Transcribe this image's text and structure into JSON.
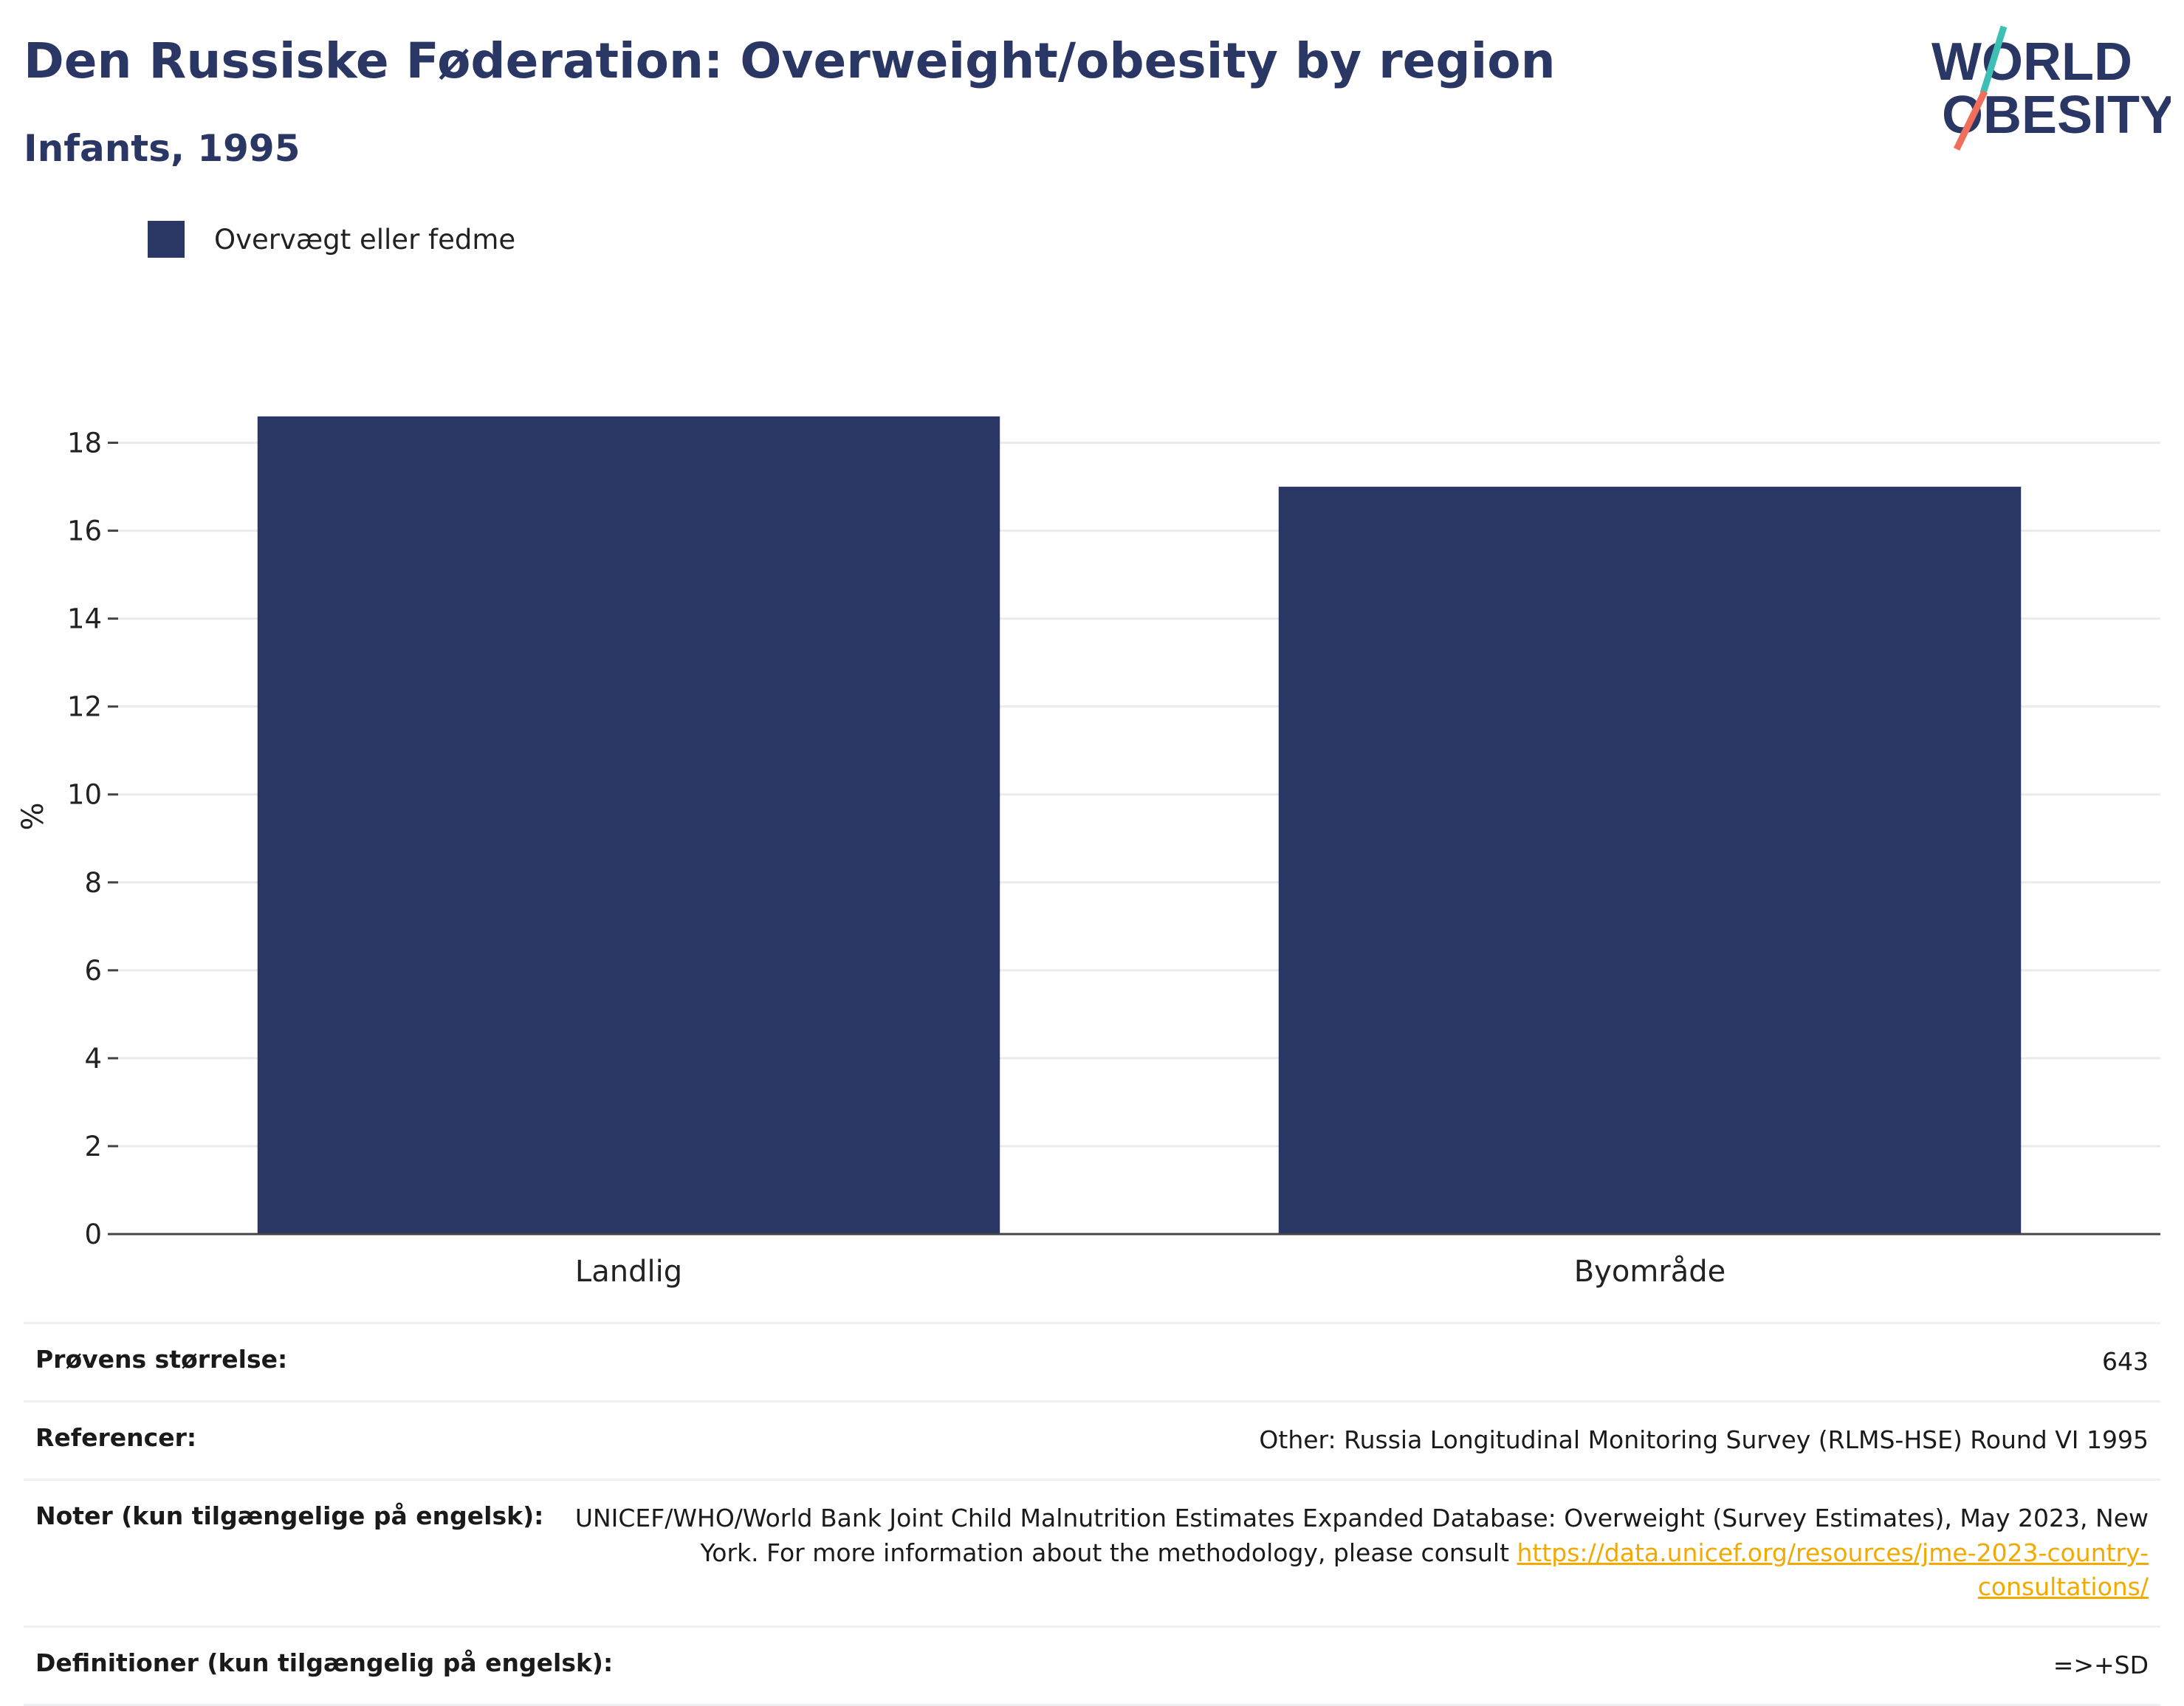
{
  "header": {
    "title": "Den Russiske Føderation: Overweight/obesity by region",
    "subtitle": "Infants, 1995"
  },
  "logo": {
    "line1": "WORLD",
    "line2": "OBESITY"
  },
  "colors": {
    "bar": "#2a3663",
    "title": "#2a3663",
    "link": "#f2a900",
    "logo_teal": "#3dbfb4",
    "logo_coral": "#ef6f5c"
  },
  "chart_data": {
    "type": "bar",
    "categories": [
      "Landlig",
      "Byområde"
    ],
    "series": [
      {
        "name": "Overvægt eller fedme",
        "values": [
          18.6,
          17.0
        ]
      }
    ],
    "ylabel": "%",
    "ylim": [
      0,
      19
    ],
    "yticks": [
      0,
      2,
      4,
      6,
      8,
      10,
      12,
      14,
      16,
      18
    ],
    "grid": true,
    "legend": "top-left"
  },
  "table": {
    "rows": [
      {
        "label": "Prøvens størrelse:",
        "value": "643"
      },
      {
        "label": "Referencer:",
        "value": "Other: Russia Longitudinal Monitoring Survey (RLMS-HSE) Round VI 1995"
      },
      {
        "label": "Noter (kun tilgængelige på engelsk):",
        "value_line1": "UNICEF/WHO/World Bank Joint Child Malnutrition Estimates Expanded Database: Overweight (Survey Estimates), May 2023, New",
        "value_line2": "York. For more information about the methodology, please consult ",
        "link": "https://data.unicef.org/resources/jme-2023-country-consultations/"
      },
      {
        "label": "Definitioner (kun tilgængelig på engelsk):",
        "value": "=>+SD"
      }
    ]
  }
}
